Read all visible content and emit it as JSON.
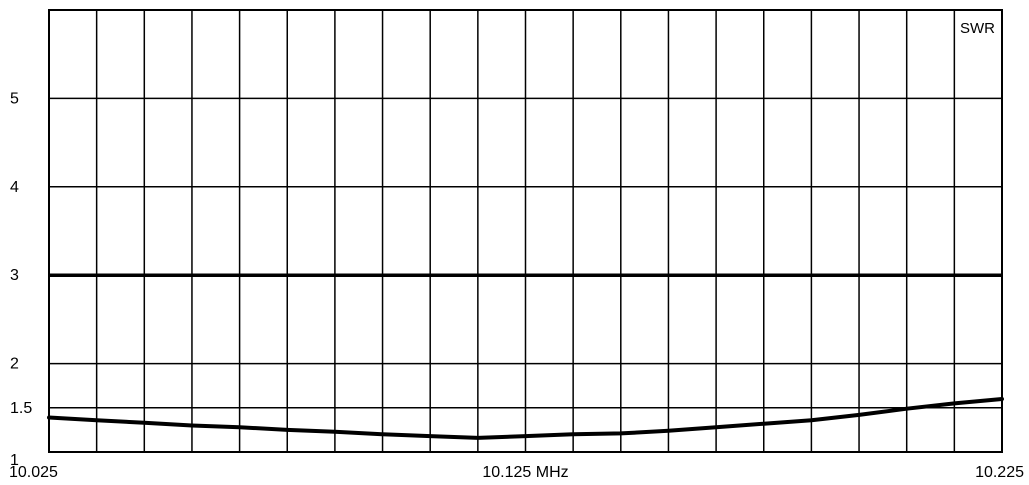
{
  "chart_data": {
    "type": "line",
    "title": "",
    "series_label": "SWR",
    "xlabel": "",
    "ylabel": "",
    "xlim": [
      10.025,
      10.225
    ],
    "ylim": [
      1,
      6
    ],
    "grid": true,
    "x_gridlines": 20,
    "y_gridlines": [
      1.5,
      2,
      3,
      4,
      5
    ],
    "x_tick_labels": [
      {
        "value": 10.025,
        "label": "10.025"
      },
      {
        "value": 10.125,
        "label": "10.125 MHz"
      },
      {
        "value": 10.225,
        "label": "10.225"
      }
    ],
    "y_tick_labels": [
      {
        "value": 1,
        "label": "1"
      },
      {
        "value": 1.5,
        "label": "1.5"
      },
      {
        "value": 2,
        "label": "2"
      },
      {
        "value": 3,
        "label": "3"
      },
      {
        "value": 4,
        "label": "4"
      },
      {
        "value": 5,
        "label": "5"
      }
    ],
    "highlight_line": {
      "y": 3
    },
    "series": [
      {
        "x": [
          10.025,
          10.035,
          10.045,
          10.055,
          10.065,
          10.075,
          10.085,
          10.095,
          10.105,
          10.115,
          10.125,
          10.135,
          10.145,
          10.155,
          10.165,
          10.175,
          10.185,
          10.195,
          10.205,
          10.215,
          10.225
        ],
        "y": [
          1.39,
          1.36,
          1.33,
          1.3,
          1.28,
          1.25,
          1.23,
          1.2,
          1.18,
          1.16,
          1.18,
          1.2,
          1.21,
          1.24,
          1.28,
          1.32,
          1.36,
          1.42,
          1.49,
          1.55,
          1.6
        ]
      }
    ]
  }
}
